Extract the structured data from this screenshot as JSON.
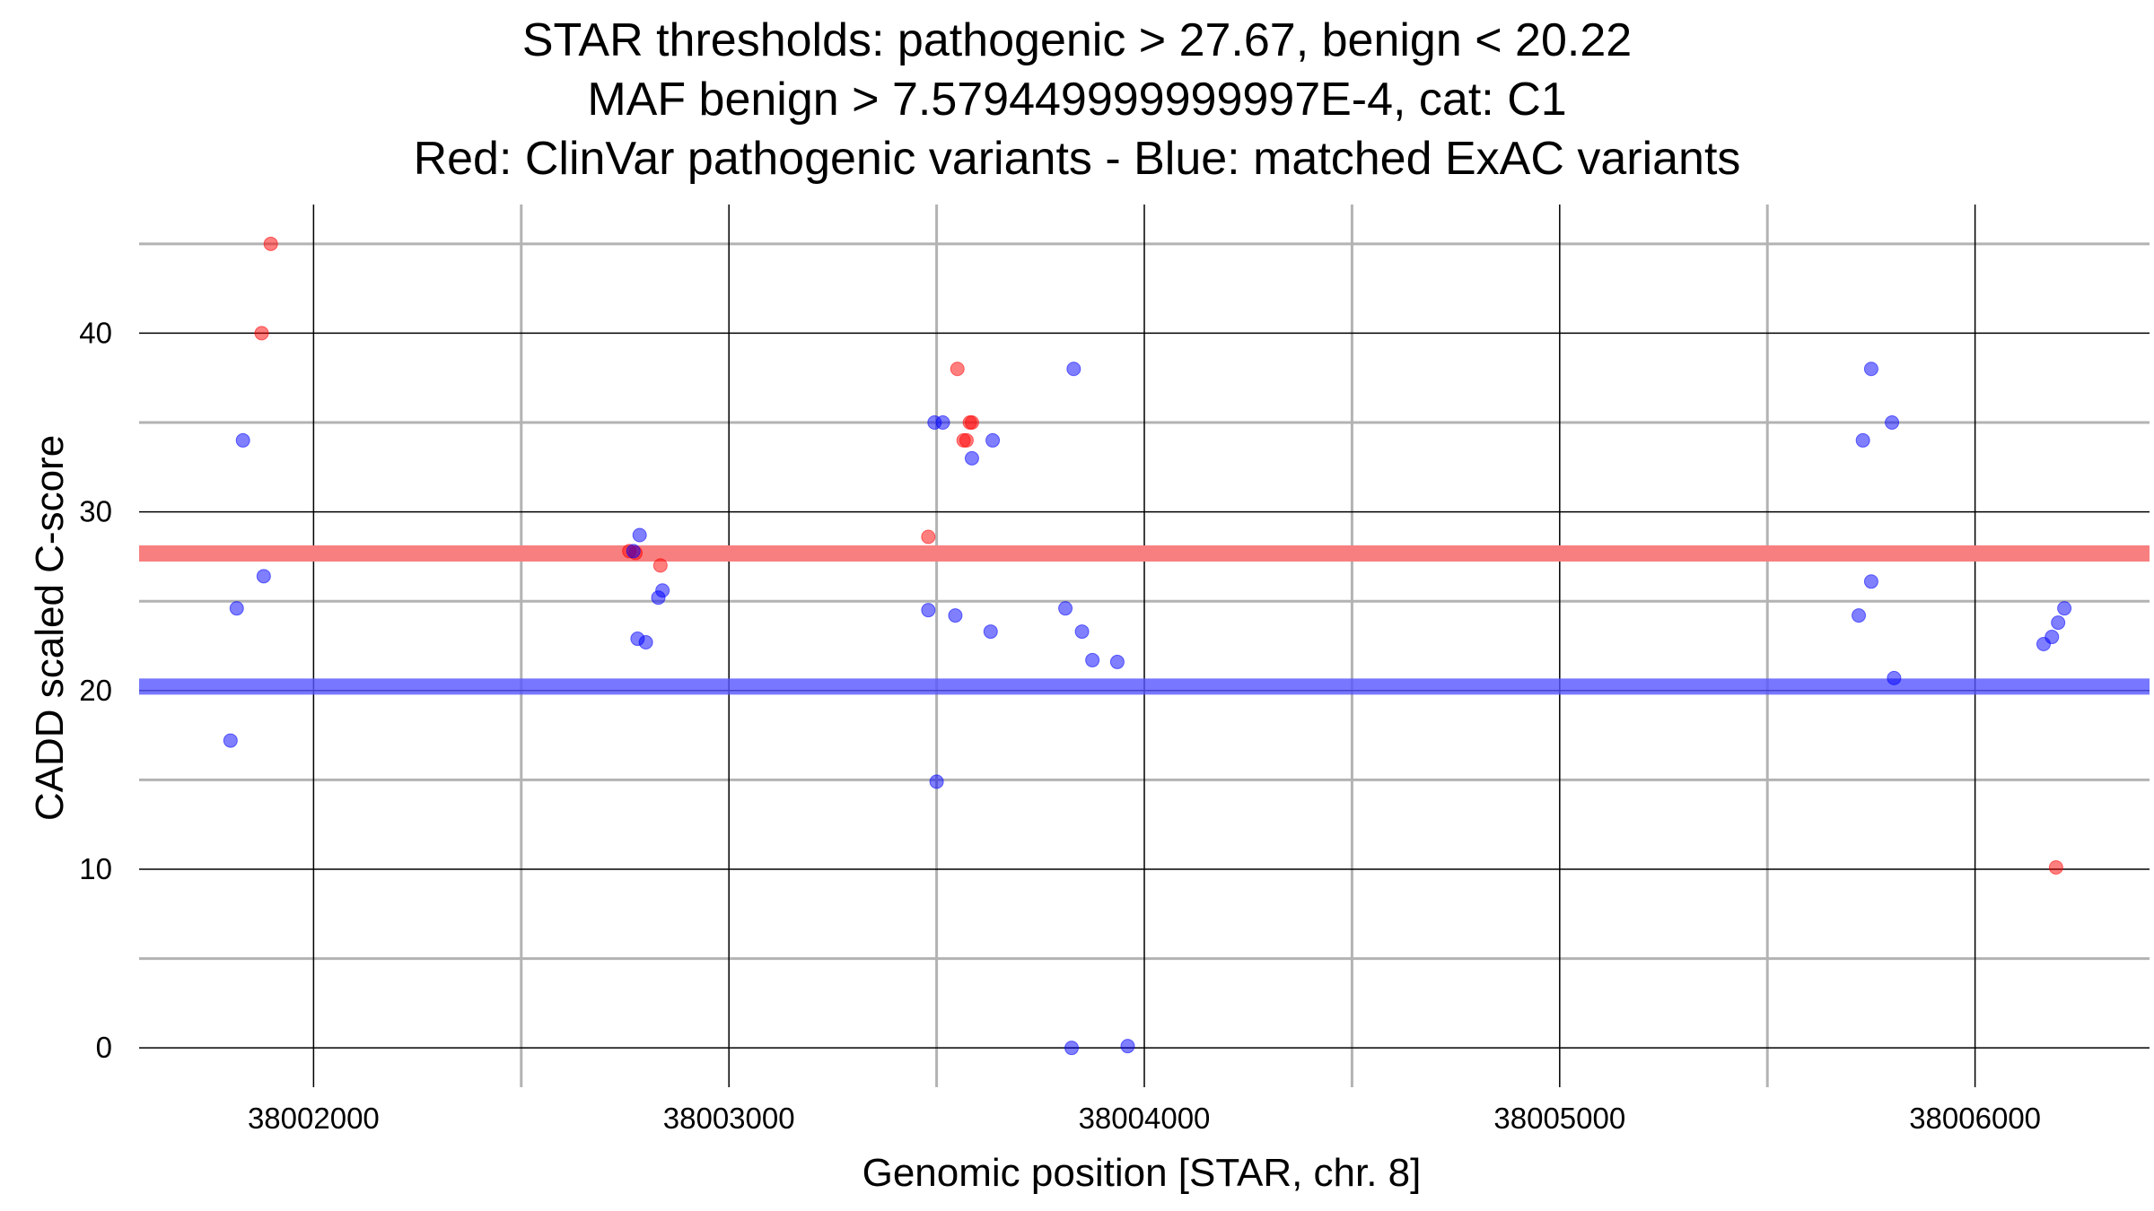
{
  "chart_data": {
    "type": "scatter",
    "title": [
      "STAR thresholds: pathogenic > 27.67, benign < 20.22",
      "MAF benign > 7.579449999999997E-4, cat: C1",
      "Red: ClinVar pathogenic variants - Blue: matched ExAC variants"
    ],
    "xlabel": "Genomic position [STAR, chr. 8]",
    "ylabel": "CADD scaled C-score",
    "xlim": [
      38001580,
      38006420
    ],
    "ylim": [
      -2.2,
      47.2
    ],
    "x_ticks": [
      38002000,
      38003000,
      38004000,
      38005000,
      38006000
    ],
    "x_tick_labels": [
      "38002000",
      "38003000",
      "38004000",
      "38005000",
      "38006000"
    ],
    "y_ticks": [
      0,
      10,
      20,
      30,
      40
    ],
    "y_tick_labels": [
      "0",
      "10",
      "20",
      "30",
      "40"
    ],
    "x_minor_grid": [
      38002500,
      38003500,
      38004500,
      38005500
    ],
    "y_minor_grid": [
      5,
      15,
      25,
      35,
      45
    ],
    "grid": true,
    "thresholds": [
      {
        "label": "pathogenic",
        "value": 27.67,
        "color": "#f87f7f"
      },
      {
        "label": "benign",
        "value": 20.22,
        "color": "#5555ff"
      }
    ],
    "series": [
      {
        "name": "ClinVar pathogenic variants",
        "color": "#ff0000",
        "points": [
          {
            "x": 38001897,
            "y": 45.0
          },
          {
            "x": 38001875,
            "y": 40.0
          },
          {
            "x": 38002760,
            "y": 27.8
          },
          {
            "x": 38002775,
            "y": 27.7
          },
          {
            "x": 38002835,
            "y": 27.0
          },
          {
            "x": 38003480,
            "y": 28.6
          },
          {
            "x": 38003550,
            "y": 38.0
          },
          {
            "x": 38003565,
            "y": 34.0
          },
          {
            "x": 38003572,
            "y": 34.0
          },
          {
            "x": 38003580,
            "y": 35.0
          },
          {
            "x": 38003585,
            "y": 35.0
          },
          {
            "x": 38006195,
            "y": 10.1
          }
        ]
      },
      {
        "name": "matched ExAC variants",
        "color": "#0000ff",
        "points": [
          {
            "x": 38001830,
            "y": 34.0
          },
          {
            "x": 38001880,
            "y": 26.4
          },
          {
            "x": 38001815,
            "y": 24.6
          },
          {
            "x": 38001800,
            "y": 17.2
          },
          {
            "x": 38002785,
            "y": 28.7
          },
          {
            "x": 38002770,
            "y": 27.8
          },
          {
            "x": 38002840,
            "y": 25.6
          },
          {
            "x": 38002830,
            "y": 25.2
          },
          {
            "x": 38002780,
            "y": 22.9
          },
          {
            "x": 38002800,
            "y": 22.7
          },
          {
            "x": 38003495,
            "y": 35.0
          },
          {
            "x": 38003515,
            "y": 35.0
          },
          {
            "x": 38003585,
            "y": 33.0
          },
          {
            "x": 38003635,
            "y": 34.0
          },
          {
            "x": 38003480,
            "y": 24.5
          },
          {
            "x": 38003545,
            "y": 24.2
          },
          {
            "x": 38003630,
            "y": 23.3
          },
          {
            "x": 38003500,
            "y": 14.9
          },
          {
            "x": 38003830,
            "y": 38.0
          },
          {
            "x": 38003810,
            "y": 24.6
          },
          {
            "x": 38003850,
            "y": 23.3
          },
          {
            "x": 38003875,
            "y": 21.7
          },
          {
            "x": 38003935,
            "y": 21.6
          },
          {
            "x": 38003825,
            "y": 0.0
          },
          {
            "x": 38003960,
            "y": 0.1
          },
          {
            "x": 38005750,
            "y": 38.0
          },
          {
            "x": 38005730,
            "y": 34.0
          },
          {
            "x": 38005800,
            "y": 35.0
          },
          {
            "x": 38005750,
            "y": 26.1
          },
          {
            "x": 38005720,
            "y": 24.2
          },
          {
            "x": 38005805,
            "y": 20.7
          },
          {
            "x": 38006215,
            "y": 24.6
          },
          {
            "x": 38006200,
            "y": 23.8
          },
          {
            "x": 38006185,
            "y": 23.0
          },
          {
            "x": 38006165,
            "y": 22.6
          }
        ]
      }
    ]
  }
}
